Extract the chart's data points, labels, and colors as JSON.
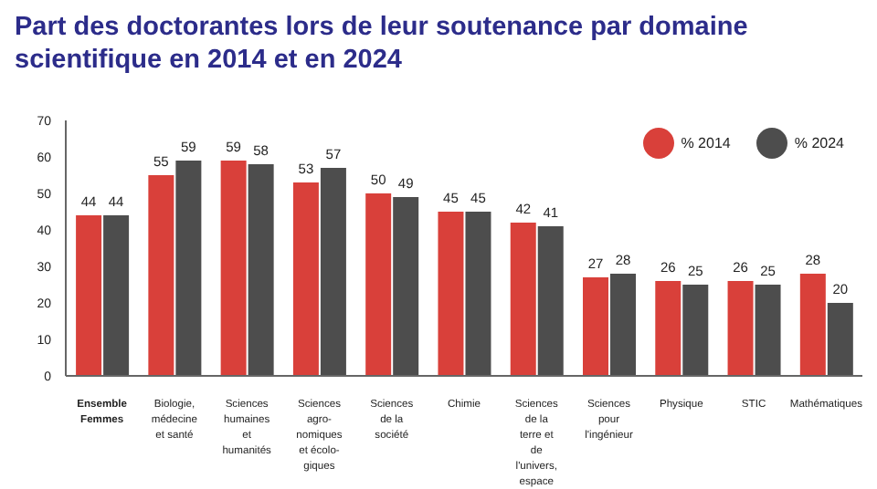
{
  "chart_data": {
    "type": "bar",
    "title": "Part des doctorantes lors de leur soutenance par domaine scientifique en 2014 et en 2024",
    "categories": [
      "Ensemble Femmes",
      "Biologie, médecine et santé",
      "Sciences humaines et humanités",
      "Sciences agro-nomiques et écolo-giques",
      "Sciences de la société",
      "Chimie",
      "Sciences de la terre et de l'univers, espace",
      "Sciences pour l'ingénieur",
      "Physique",
      "STIC",
      "Mathématiques"
    ],
    "series": [
      {
        "name": "% 2014",
        "color": "#d9403a",
        "values": [
          44,
          55,
          59,
          53,
          50,
          45,
          42,
          27,
          26,
          26,
          28
        ]
      },
      {
        "name": "% 2024",
        "color": "#4d4d4d",
        "values": [
          44,
          59,
          58,
          57,
          49,
          45,
          41,
          28,
          25,
          25,
          20
        ]
      }
    ],
    "ylim": [
      0,
      70
    ],
    "yticks": [
      0,
      10,
      20,
      30,
      40,
      50,
      60,
      70
    ],
    "grid": false,
    "legend": "top right",
    "data_labels": true
  }
}
